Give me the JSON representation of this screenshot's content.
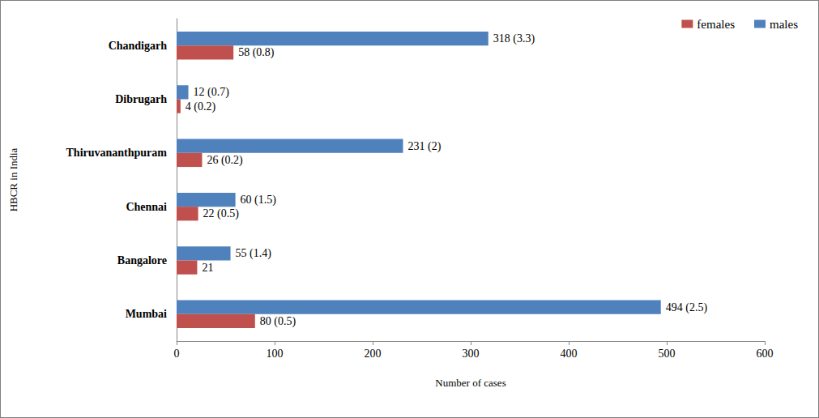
{
  "chart_data": {
    "type": "bar",
    "orientation": "horizontal",
    "x_label": "Number of cases",
    "y_label": "HBCR in India",
    "categories": [
      "Mumbai",
      "Bangalore",
      "Chennai",
      "Thiruvananthpuram",
      "Dibrugarh",
      "Chandigarh"
    ],
    "series": [
      {
        "name": "females",
        "color": "#c0504d",
        "values": [
          80,
          21,
          22,
          26,
          4,
          58
        ],
        "value_labels": [
          "80 (0.5)",
          "21",
          "22 (0.5)",
          "26 (0.2)",
          "4 (0.2)",
          "58 (0.8)"
        ]
      },
      {
        "name": "males",
        "color": "#4f81bd",
        "values": [
          494,
          55,
          60,
          231,
          12,
          318
        ],
        "value_labels": [
          "494 (2.5)",
          "55 (1.4)",
          "60 (1.5)",
          "231 (2)",
          "12 (0.7)",
          "318 (3.3)"
        ]
      }
    ],
    "xlim": [
      0,
      600
    ],
    "xticks": [
      0,
      100,
      200,
      300,
      400,
      500,
      600
    ],
    "grid": false,
    "legend": "top-right",
    "data_labels": true
  }
}
